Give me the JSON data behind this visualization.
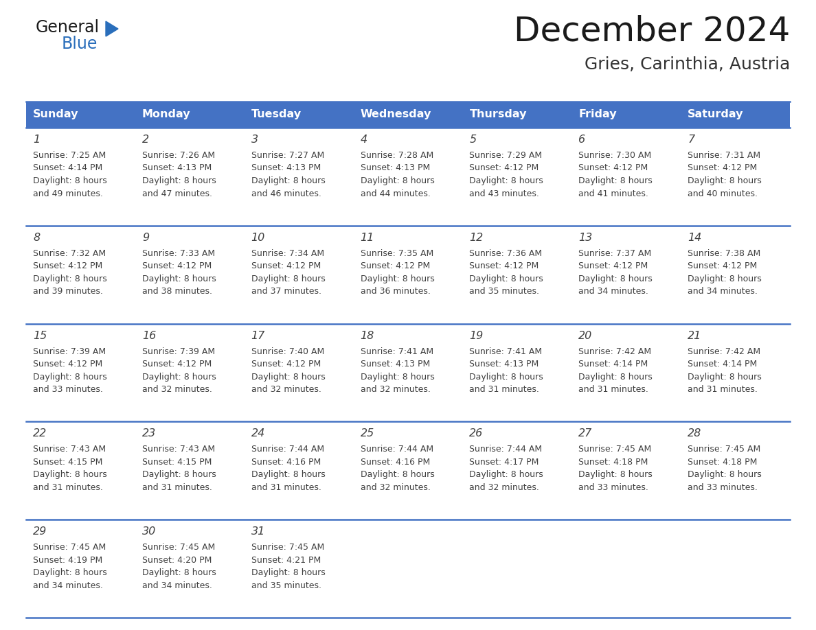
{
  "title": "December 2024",
  "subtitle": "Gries, Carinthia, Austria",
  "days_of_week": [
    "Sunday",
    "Monday",
    "Tuesday",
    "Wednesday",
    "Thursday",
    "Friday",
    "Saturday"
  ],
  "header_bg": "#4472c4",
  "header_text": "#ffffff",
  "cell_bg": "#ffffff",
  "row_line_color": "#4472c4",
  "text_color": "#404040",
  "calendar_data": [
    [
      {
        "day": 1,
        "sunrise": "7:25 AM",
        "sunset": "4:14 PM",
        "daylight": "8 hours",
        "daylight2": "and 49 minutes."
      },
      {
        "day": 2,
        "sunrise": "7:26 AM",
        "sunset": "4:13 PM",
        "daylight": "8 hours",
        "daylight2": "and 47 minutes."
      },
      {
        "day": 3,
        "sunrise": "7:27 AM",
        "sunset": "4:13 PM",
        "daylight": "8 hours",
        "daylight2": "and 46 minutes."
      },
      {
        "day": 4,
        "sunrise": "7:28 AM",
        "sunset": "4:13 PM",
        "daylight": "8 hours",
        "daylight2": "and 44 minutes."
      },
      {
        "day": 5,
        "sunrise": "7:29 AM",
        "sunset": "4:12 PM",
        "daylight": "8 hours",
        "daylight2": "and 43 minutes."
      },
      {
        "day": 6,
        "sunrise": "7:30 AM",
        "sunset": "4:12 PM",
        "daylight": "8 hours",
        "daylight2": "and 41 minutes."
      },
      {
        "day": 7,
        "sunrise": "7:31 AM",
        "sunset": "4:12 PM",
        "daylight": "8 hours",
        "daylight2": "and 40 minutes."
      }
    ],
    [
      {
        "day": 8,
        "sunrise": "7:32 AM",
        "sunset": "4:12 PM",
        "daylight": "8 hours",
        "daylight2": "and 39 minutes."
      },
      {
        "day": 9,
        "sunrise": "7:33 AM",
        "sunset": "4:12 PM",
        "daylight": "8 hours",
        "daylight2": "and 38 minutes."
      },
      {
        "day": 10,
        "sunrise": "7:34 AM",
        "sunset": "4:12 PM",
        "daylight": "8 hours",
        "daylight2": "and 37 minutes."
      },
      {
        "day": 11,
        "sunrise": "7:35 AM",
        "sunset": "4:12 PM",
        "daylight": "8 hours",
        "daylight2": "and 36 minutes."
      },
      {
        "day": 12,
        "sunrise": "7:36 AM",
        "sunset": "4:12 PM",
        "daylight": "8 hours",
        "daylight2": "and 35 minutes."
      },
      {
        "day": 13,
        "sunrise": "7:37 AM",
        "sunset": "4:12 PM",
        "daylight": "8 hours",
        "daylight2": "and 34 minutes."
      },
      {
        "day": 14,
        "sunrise": "7:38 AM",
        "sunset": "4:12 PM",
        "daylight": "8 hours",
        "daylight2": "and 34 minutes."
      }
    ],
    [
      {
        "day": 15,
        "sunrise": "7:39 AM",
        "sunset": "4:12 PM",
        "daylight": "8 hours",
        "daylight2": "and 33 minutes."
      },
      {
        "day": 16,
        "sunrise": "7:39 AM",
        "sunset": "4:12 PM",
        "daylight": "8 hours",
        "daylight2": "and 32 minutes."
      },
      {
        "day": 17,
        "sunrise": "7:40 AM",
        "sunset": "4:12 PM",
        "daylight": "8 hours",
        "daylight2": "and 32 minutes."
      },
      {
        "day": 18,
        "sunrise": "7:41 AM",
        "sunset": "4:13 PM",
        "daylight": "8 hours",
        "daylight2": "and 32 minutes."
      },
      {
        "day": 19,
        "sunrise": "7:41 AM",
        "sunset": "4:13 PM",
        "daylight": "8 hours",
        "daylight2": "and 31 minutes."
      },
      {
        "day": 20,
        "sunrise": "7:42 AM",
        "sunset": "4:14 PM",
        "daylight": "8 hours",
        "daylight2": "and 31 minutes."
      },
      {
        "day": 21,
        "sunrise": "7:42 AM",
        "sunset": "4:14 PM",
        "daylight": "8 hours",
        "daylight2": "and 31 minutes."
      }
    ],
    [
      {
        "day": 22,
        "sunrise": "7:43 AM",
        "sunset": "4:15 PM",
        "daylight": "8 hours",
        "daylight2": "and 31 minutes."
      },
      {
        "day": 23,
        "sunrise": "7:43 AM",
        "sunset": "4:15 PM",
        "daylight": "8 hours",
        "daylight2": "and 31 minutes."
      },
      {
        "day": 24,
        "sunrise": "7:44 AM",
        "sunset": "4:16 PM",
        "daylight": "8 hours",
        "daylight2": "and 31 minutes."
      },
      {
        "day": 25,
        "sunrise": "7:44 AM",
        "sunset": "4:16 PM",
        "daylight": "8 hours",
        "daylight2": "and 32 minutes."
      },
      {
        "day": 26,
        "sunrise": "7:44 AM",
        "sunset": "4:17 PM",
        "daylight": "8 hours",
        "daylight2": "and 32 minutes."
      },
      {
        "day": 27,
        "sunrise": "7:45 AM",
        "sunset": "4:18 PM",
        "daylight": "8 hours",
        "daylight2": "and 33 minutes."
      },
      {
        "day": 28,
        "sunrise": "7:45 AM",
        "sunset": "4:18 PM",
        "daylight": "8 hours",
        "daylight2": "and 33 minutes."
      }
    ],
    [
      {
        "day": 29,
        "sunrise": "7:45 AM",
        "sunset": "4:19 PM",
        "daylight": "8 hours",
        "daylight2": "and 34 minutes."
      },
      {
        "day": 30,
        "sunrise": "7:45 AM",
        "sunset": "4:20 PM",
        "daylight": "8 hours",
        "daylight2": "and 34 minutes."
      },
      {
        "day": 31,
        "sunrise": "7:45 AM",
        "sunset": "4:21 PM",
        "daylight": "8 hours",
        "daylight2": "and 35 minutes."
      },
      null,
      null,
      null,
      null
    ]
  ],
  "logo_triangle_color": "#2a6ebb",
  "fig_width": 11.88,
  "fig_height": 9.18,
  "dpi": 100
}
